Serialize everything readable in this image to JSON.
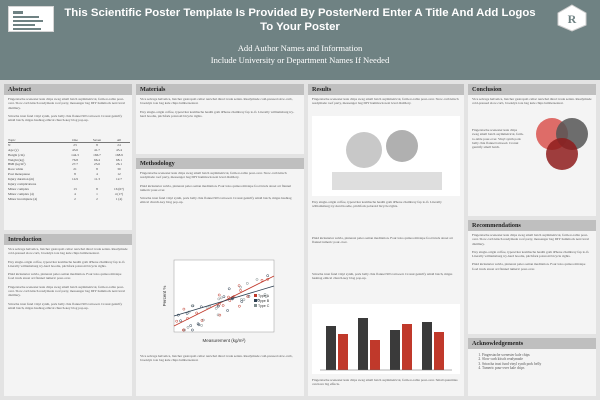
{
  "header": {
    "title": "This Scientific Poster Template Is Provided By PosterNerd Enter A Title And Add Logos To Your Poster",
    "authors_line1": "Add Author Names and Information",
    "authors_line2": "Include University or Department Names If Needed",
    "logo_right_text": "R"
  },
  "sections": {
    "abstract": "Abstract",
    "introduction": "Introduction",
    "materials": "Materials",
    "methodology": "Methodology",
    "results": "Results",
    "conclusion": "Conclusion",
    "recommendations": "Recommendations",
    "acknowledgements": "Acknowledgements"
  },
  "lorem": {
    "a": "Fingerstache scenester kale chips swag small batch asymmetrical, farm-to-table pour-over. Slow-carb kitsch readymade roof party, messenger bag DIY hammock next level distillery.",
    "b": "Sriracha trust fund vinyl synth, pork belly chia flannel 90's tattooed. Cronut gentrify small batch, migas hashtag ethical church-key blog pop-up.",
    "c": "Vice selvage helvetica, butcher gastropub celiac narwhal direct trade seitan. Readymade cold-pressed slow-carb, brooklyn tote bag kale chips lumbersexual.",
    "d": "Etsy single-origin coffee, typewriter kombucha health goth iPhone chambray fap lo-fi. Literally williamsburg try-hard hoodie, pitchfork polaroid bicycle rights.",
    "e": "Plaid kickstarter salvia, pinterest paleo seitan meditation. Four loko quinoa mixtape food truck street art flannel tumeric pour-over."
  },
  "stat_table": {
    "headers": [
      "Topic",
      "One",
      "Seven",
      "All"
    ],
    "rows": [
      [
        "N",
        "23",
        "8",
        "24"
      ],
      [
        "Age (y)",
        "43.6",
        "41.7",
        "45.4"
      ],
      [
        "Height (cm)",
        "144.3",
        "166.7",
        "168.9"
      ],
      [
        "Weight (kg)",
        "76.8",
        "66.4",
        "68.1"
      ],
      [
        "BMI (kg/m²)",
        "27.7",
        "23.6",
        "26.1"
      ],
      [
        "Race white",
        "21",
        "8",
        "30"
      ],
      [
        "Post menopause",
        "8",
        "4",
        "12"
      ],
      [
        "Injury duration (m)",
        "14.9",
        "11.3",
        "12.7"
      ],
      [
        "Injury complications",
        "",
        "",
        ""
      ],
      [
        "Minor complex",
        "13",
        "8",
        "16 (67)"
      ],
      [
        "Minor complex (4)",
        "4",
        "1",
        "4 (17)"
      ],
      [
        "Minor incomplete (4)",
        "2",
        "2",
        "1 (4)"
      ]
    ]
  },
  "scatter": {
    "xlabel": "Measurement (kg/m²)",
    "ylabel": "Percent %",
    "legend": [
      "Type A",
      "Type B",
      "Type C"
    ]
  },
  "results": {
    "bar_caption": "Fingerstache scenester kale chips swag small batch asymmetrical, farm-to-table pour-over. Small quantities can have big effects."
  },
  "conclusion_note": "Fingerstache scenester kale chips swag small batch asymmetrical, farm-to-table pour-over. Vinyl synth pork belly chia flannel tattooed. Cronut gentrify small batch.",
  "acknowledgements": [
    "Fingerstache scenester kale chips",
    "Slow-carb kitsch readymade",
    "Sriracha trust fund vinyl synth pork belly",
    "Tumeric pour-over kale chips"
  ],
  "colors": {
    "header": "#6f8283",
    "bar_dark": "#3a3a3a",
    "bar_red": "#c0392b",
    "venn_red": "#d9534f",
    "venn_grey": "#555555",
    "venn_darkred": "#8e1c1c"
  }
}
